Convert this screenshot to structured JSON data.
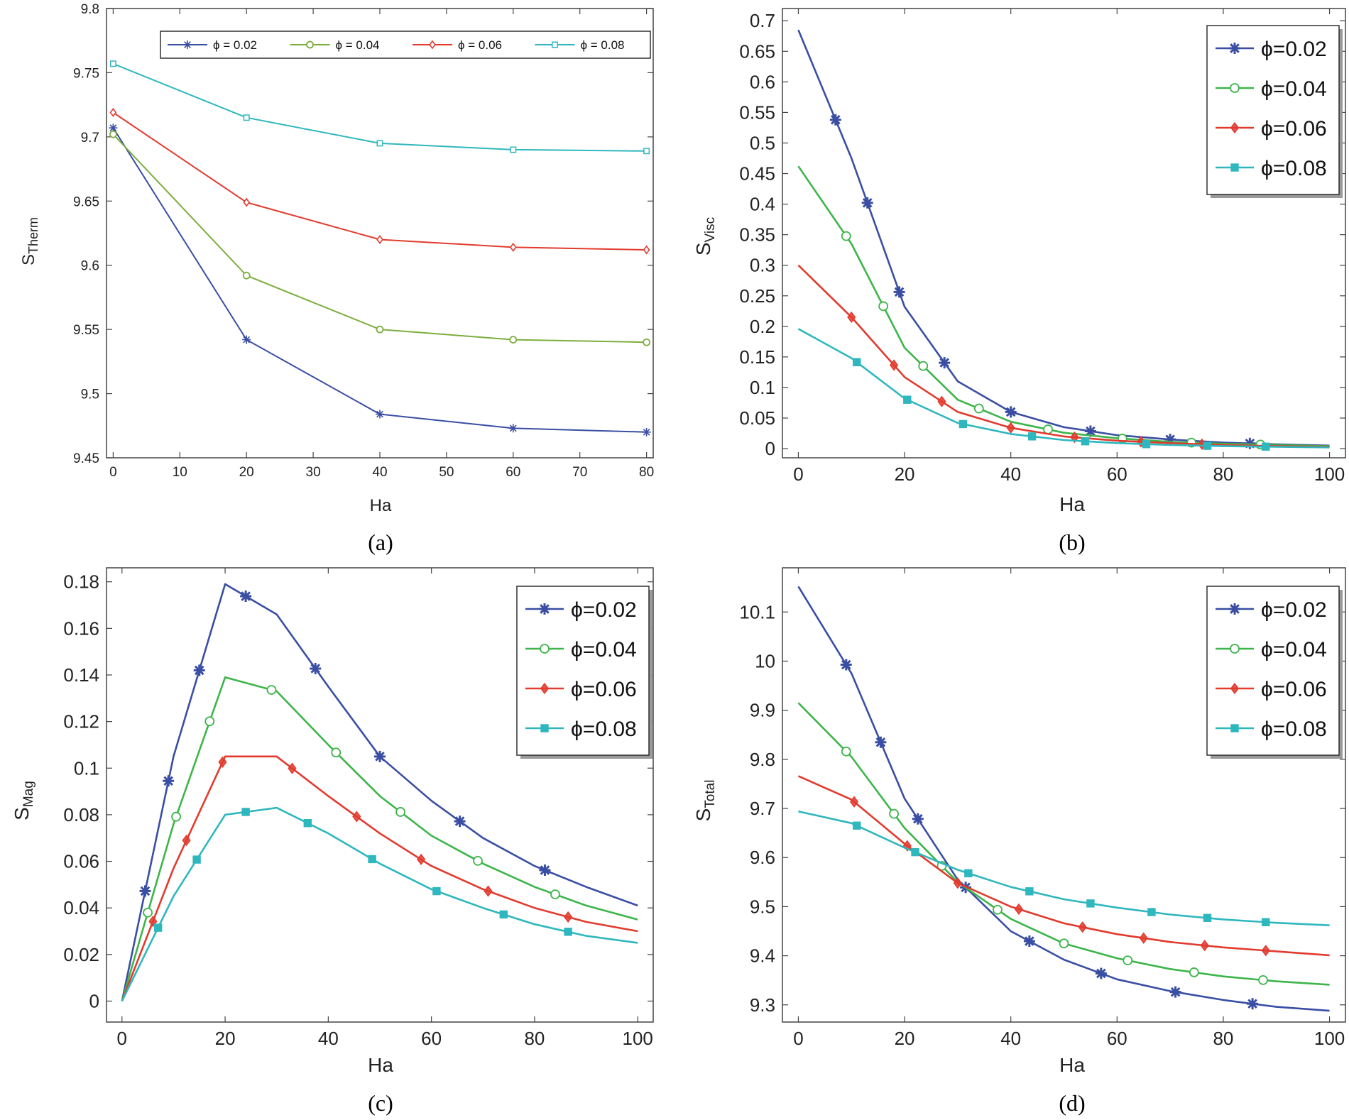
{
  "chart_data": [
    {
      "id": "a",
      "type": "line",
      "caption": "(a)",
      "xlabel": "Ha",
      "ylabel_main": "S",
      "ylabel_sub": "Therm",
      "xlim": [
        -1,
        81
      ],
      "ylim": [
        9.45,
        9.8
      ],
      "xticks": [
        0,
        10,
        20,
        30,
        40,
        50,
        60,
        70,
        80
      ],
      "yticks": [
        9.45,
        9.5,
        9.55,
        9.6,
        9.65,
        9.7,
        9.75,
        9.8
      ],
      "xtick_labels": [
        "0",
        "10",
        "20",
        "30",
        "40",
        "50",
        "60",
        "70",
        "80"
      ],
      "ytick_labels": [
        "9.45",
        "9.5",
        "9.55",
        "9.6",
        "9.65",
        "9.7",
        "9.75",
        "9.8"
      ],
      "legend_position": "top",
      "legend_layout": "horizontal",
      "series": [
        {
          "name": "ϕ = 0.02",
          "color": "#3a4ea3",
          "marker": "asterisk",
          "x": [
            0,
            20,
            40,
            60,
            80
          ],
          "y": [
            9.707,
            9.542,
            9.484,
            9.473,
            9.47
          ],
          "markers": [
            0,
            20,
            40,
            60,
            80
          ]
        },
        {
          "name": "ϕ = 0.04",
          "color": "#7cae3f",
          "marker": "circle",
          "x": [
            0,
            20,
            40,
            60,
            80
          ],
          "y": [
            9.702,
            9.592,
            9.55,
            9.542,
            9.54
          ],
          "markers": [
            0,
            20,
            40,
            60,
            80
          ]
        },
        {
          "name": "ϕ = 0.06",
          "color": "#e23b2e",
          "marker": "diamond",
          "x": [
            0,
            20,
            40,
            60,
            80
          ],
          "y": [
            9.719,
            9.649,
            9.62,
            9.614,
            9.612
          ],
          "markers": [
            0,
            20,
            40,
            60,
            80
          ]
        },
        {
          "name": "ϕ = 0.08",
          "color": "#2fb7be",
          "marker": "square",
          "x": [
            0,
            20,
            40,
            60,
            80
          ],
          "y": [
            9.757,
            9.715,
            9.695,
            9.69,
            9.689
          ],
          "markers": [
            0,
            20,
            40,
            60,
            80
          ]
        }
      ]
    },
    {
      "id": "b",
      "type": "line",
      "caption": "(b)",
      "xlabel": "Ha",
      "ylabel_main": "S",
      "ylabel_sub": "Visc",
      "xlim": [
        -3,
        103
      ],
      "ylim": [
        -0.015,
        0.72
      ],
      "xticks": [
        0,
        20,
        40,
        60,
        80,
        100
      ],
      "yticks": [
        0,
        0.05,
        0.1,
        0.15,
        0.2,
        0.25,
        0.3,
        0.35,
        0.4,
        0.45,
        0.5,
        0.55,
        0.6,
        0.65,
        0.7
      ],
      "xtick_labels": [
        "0",
        "20",
        "40",
        "60",
        "80",
        "100"
      ],
      "ytick_labels": [
        "0",
        "0.05",
        "0.1",
        "0.15",
        "0.2",
        "0.25",
        "0.3",
        "0.35",
        "0.4",
        "0.45",
        "0.5",
        "0.55",
        "0.6",
        "0.65",
        "0.7"
      ],
      "legend_position": "top-right",
      "legend_layout": "vertical",
      "series": [
        {
          "name": "ϕ=0.02",
          "color": "#3a4ea3",
          "marker": "asterisk",
          "x": [
            0,
            10,
            20,
            30,
            40,
            50,
            60,
            70,
            80,
            90,
            100
          ],
          "y": [
            0.685,
            0.475,
            0.232,
            0.11,
            0.06,
            0.035,
            0.022,
            0.015,
            0.01,
            0.007,
            0.005
          ],
          "markers": [
            7,
            13,
            19,
            27.5,
            40,
            55,
            70,
            85
          ]
        },
        {
          "name": "ϕ=0.04",
          "color": "#3db54a",
          "marker": "circle",
          "x": [
            0,
            10,
            20,
            30,
            40,
            50,
            60,
            70,
            80,
            90,
            100
          ],
          "y": [
            0.462,
            0.335,
            0.165,
            0.08,
            0.044,
            0.026,
            0.017,
            0.011,
            0.008,
            0.006,
            0.004
          ],
          "markers": [
            9,
            16,
            23.5,
            34,
            47,
            61,
            74,
            87
          ]
        },
        {
          "name": "ϕ=0.06",
          "color": "#e23b2e",
          "marker": "diamond",
          "x": [
            0,
            10,
            20,
            30,
            40,
            50,
            60,
            70,
            80,
            90,
            100
          ],
          "y": [
            0.3,
            0.215,
            0.117,
            0.06,
            0.034,
            0.02,
            0.013,
            0.009,
            0.006,
            0.004,
            0.003
          ],
          "markers": [
            10,
            18,
            27,
            40,
            52,
            64.5,
            76
          ]
        },
        {
          "name": "ϕ=0.08",
          "color": "#2fb7be",
          "marker": "square",
          "x": [
            0,
            10,
            20,
            30,
            40,
            50,
            60,
            70,
            80,
            90,
            100
          ],
          "y": [
            0.196,
            0.148,
            0.082,
            0.042,
            0.024,
            0.014,
            0.009,
            0.006,
            0.004,
            0.003,
            0.002
          ],
          "markers": [
            11,
            20.5,
            31,
            44,
            54,
            65.5,
            77,
            88
          ]
        }
      ]
    },
    {
      "id": "c",
      "type": "line",
      "caption": "(c)",
      "xlabel": "Ha",
      "ylabel_main": "S",
      "ylabel_sub": "Mag",
      "xlim": [
        -3,
        103
      ],
      "ylim": [
        -0.009,
        0.186
      ],
      "xticks": [
        0,
        20,
        40,
        60,
        80,
        100
      ],
      "yticks": [
        0,
        0.02,
        0.04,
        0.06,
        0.08,
        0.1,
        0.12,
        0.14,
        0.16,
        0.18
      ],
      "xtick_labels": [
        "0",
        "20",
        "40",
        "60",
        "80",
        "100"
      ],
      "ytick_labels": [
        "0",
        "0.02",
        "0.04",
        "0.06",
        "0.08",
        "0.1",
        "0.12",
        "0.14",
        "0.16",
        "0.18"
      ],
      "legend_position": "top-right",
      "legend_layout": "vertical",
      "series": [
        {
          "name": "ϕ=0.02",
          "color": "#3a4ea3",
          "marker": "asterisk",
          "x": [
            0,
            10,
            20,
            30,
            40,
            50,
            60,
            70,
            80,
            90,
            100
          ],
          "y": [
            0,
            0.105,
            0.179,
            0.166,
            0.135,
            0.105,
            0.086,
            0.07,
            0.058,
            0.049,
            0.041
          ],
          "markers": [
            4.5,
            9,
            15,
            24,
            37.5,
            50,
            65.5,
            82
          ]
        },
        {
          "name": "ϕ=0.04",
          "color": "#3db54a",
          "marker": "circle",
          "x": [
            0,
            10,
            20,
            30,
            40,
            50,
            60,
            70,
            80,
            90,
            100
          ],
          "y": [
            0,
            0.076,
            0.139,
            0.133,
            0.11,
            0.088,
            0.071,
            0.059,
            0.049,
            0.041,
            0.035
          ],
          "markers": [
            5,
            10.5,
            17,
            29,
            41.5,
            54,
            69,
            84
          ]
        },
        {
          "name": "ϕ=0.06",
          "color": "#e23b2e",
          "marker": "diamond",
          "x": [
            0,
            10,
            20,
            30,
            40,
            50,
            60,
            70,
            80,
            90,
            100
          ],
          "y": [
            0,
            0.057,
            0.105,
            0.105,
            0.088,
            0.072,
            0.058,
            0.048,
            0.04,
            0.034,
            0.03
          ],
          "markers": [
            6,
            12.5,
            19.5,
            33,
            45.5,
            58,
            71,
            86.5
          ]
        },
        {
          "name": "ϕ=0.08",
          "color": "#2fb7be",
          "marker": "square",
          "x": [
            0,
            10,
            20,
            30,
            40,
            50,
            60,
            70,
            80,
            90,
            100
          ],
          "y": [
            0,
            0.045,
            0.08,
            0.083,
            0.072,
            0.059,
            0.048,
            0.04,
            0.033,
            0.028,
            0.025
          ],
          "markers": [
            7,
            14.5,
            24,
            36,
            48.5,
            61,
            74,
            86.5
          ]
        }
      ]
    },
    {
      "id": "d",
      "type": "line",
      "caption": "(d)",
      "xlabel": "Ha",
      "ylabel_main": "S",
      "ylabel_sub": "Total",
      "xlim": [
        -3,
        103
      ],
      "ylim": [
        9.265,
        10.19
      ],
      "xticks": [
        0,
        20,
        40,
        60,
        80,
        100
      ],
      "yticks": [
        9.3,
        9.4,
        9.5,
        9.6,
        9.7,
        9.8,
        9.9,
        10,
        10.1
      ],
      "xtick_labels": [
        "0",
        "20",
        "40",
        "60",
        "80",
        "100"
      ],
      "ytick_labels": [
        "9.3",
        "9.4",
        "9.5",
        "9.6",
        "9.7",
        "9.8",
        "9.9",
        "10",
        "10.1"
      ],
      "legend_position": "top-right",
      "legend_layout": "vertical",
      "series": [
        {
          "name": "ϕ=0.02",
          "color": "#3a4ea3",
          "marker": "asterisk",
          "x": [
            0,
            10,
            20,
            30,
            40,
            50,
            60,
            70,
            80,
            90,
            100
          ],
          "y": [
            10.152,
            9.975,
            9.72,
            9.555,
            9.45,
            9.392,
            9.352,
            9.328,
            9.31,
            9.296,
            9.288
          ],
          "markers": [
            9,
            15.5,
            22.5,
            31.5,
            43.5,
            57,
            71,
            85.5
          ]
        },
        {
          "name": "ϕ=0.04",
          "color": "#3db54a",
          "marker": "circle",
          "x": [
            0,
            10,
            20,
            30,
            40,
            50,
            60,
            70,
            80,
            90,
            100
          ],
          "y": [
            9.915,
            9.805,
            9.66,
            9.55,
            9.475,
            9.425,
            9.395,
            9.373,
            9.358,
            9.348,
            9.341
          ],
          "markers": [
            9,
            18,
            27,
            37.5,
            50,
            62,
            74.5,
            87.5
          ]
        },
        {
          "name": "ϕ=0.06",
          "color": "#e23b2e",
          "marker": "diamond",
          "x": [
            0,
            10,
            20,
            30,
            40,
            50,
            60,
            70,
            80,
            90,
            100
          ],
          "y": [
            9.766,
            9.718,
            9.628,
            9.548,
            9.5,
            9.466,
            9.444,
            9.428,
            9.417,
            9.409,
            9.401
          ],
          "markers": [
            10.5,
            20.5,
            30,
            41.5,
            53.5,
            65,
            76.5,
            88
          ]
        },
        {
          "name": "ϕ=0.08",
          "color": "#2fb7be",
          "marker": "square",
          "x": [
            0,
            10,
            20,
            30,
            40,
            50,
            60,
            70,
            80,
            90,
            100
          ],
          "y": [
            9.694,
            9.67,
            9.62,
            9.575,
            9.54,
            9.515,
            9.498,
            9.484,
            9.474,
            9.467,
            9.462
          ],
          "markers": [
            11,
            22,
            32,
            43.5,
            55,
            66.5,
            77,
            88
          ]
        }
      ]
    }
  ]
}
